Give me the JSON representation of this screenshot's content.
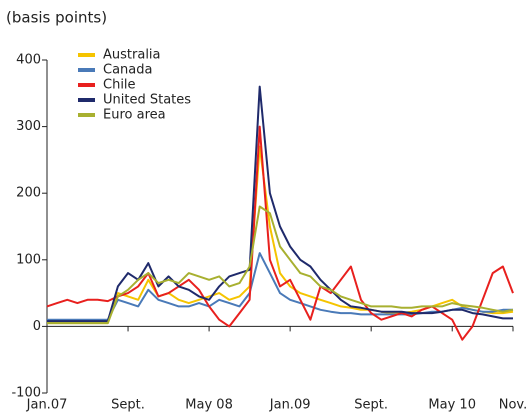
{
  "chart_data": {
    "type": "line",
    "title": "(basis points)",
    "categories": [
      "Jan.07",
      null,
      null,
      null,
      null,
      null,
      null,
      null,
      "Sept.",
      null,
      null,
      null,
      null,
      null,
      null,
      null,
      "May 08",
      null,
      null,
      null,
      null,
      null,
      null,
      null,
      "Jan.09",
      null,
      null,
      null,
      null,
      null,
      null,
      null,
      "Sept.",
      null,
      null,
      null,
      null,
      null,
      null,
      null,
      "May 10",
      null,
      null,
      null,
      null,
      null,
      "Nov."
    ],
    "series": [
      {
        "name": "Australia",
        "color": "#f5c400",
        "values": [
          5,
          5,
          5,
          5,
          5,
          5,
          5,
          50,
          45,
          40,
          70,
          45,
          50,
          40,
          35,
          40,
          45,
          50,
          40,
          45,
          60,
          270,
          150,
          80,
          60,
          50,
          45,
          40,
          35,
          30,
          28,
          25,
          25,
          22,
          20,
          20,
          22,
          25,
          30,
          35,
          40,
          30,
          25,
          22,
          20,
          20,
          22
        ]
      },
      {
        "name": "Canada",
        "color": "#4a7ab8",
        "values": [
          10,
          10,
          10,
          10,
          10,
          10,
          10,
          40,
          35,
          30,
          55,
          40,
          35,
          30,
          30,
          35,
          30,
          40,
          35,
          30,
          50,
          110,
          80,
          50,
          40,
          35,
          30,
          25,
          22,
          20,
          20,
          18,
          18,
          18,
          18,
          18,
          18,
          20,
          22,
          22,
          25,
          28,
          25,
          22,
          22,
          25,
          25
        ]
      },
      {
        "name": "Chile",
        "color": "#e8201e",
        "values": [
          30,
          35,
          40,
          35,
          40,
          40,
          38,
          45,
          50,
          60,
          80,
          45,
          50,
          60,
          70,
          55,
          30,
          10,
          0,
          20,
          40,
          300,
          100,
          60,
          70,
          40,
          10,
          60,
          50,
          70,
          90,
          40,
          20,
          10,
          15,
          20,
          15,
          25,
          30,
          20,
          10,
          -20,
          0,
          40,
          80,
          90,
          50
        ]
      },
      {
        "name": "United States",
        "color": "#1f2a6b",
        "values": [
          8,
          8,
          8,
          8,
          8,
          8,
          8,
          60,
          80,
          70,
          95,
          60,
          75,
          60,
          55,
          45,
          40,
          60,
          75,
          80,
          85,
          360,
          200,
          150,
          120,
          100,
          90,
          70,
          55,
          40,
          30,
          28,
          25,
          22,
          22,
          22,
          20,
          20,
          20,
          22,
          25,
          25,
          20,
          18,
          15,
          12,
          12
        ]
      },
      {
        "name": "Euro area",
        "color": "#a8b030",
        "values": [
          5,
          5,
          5,
          5,
          5,
          5,
          5,
          45,
          55,
          70,
          80,
          65,
          70,
          65,
          80,
          75,
          70,
          75,
          60,
          65,
          90,
          180,
          170,
          120,
          100,
          80,
          75,
          60,
          55,
          45,
          40,
          35,
          30,
          30,
          30,
          28,
          28,
          30,
          30,
          30,
          35,
          32,
          30,
          28,
          25,
          22,
          25
        ]
      }
    ],
    "ylim": [
      -100,
      400
    ],
    "yticks": [
      -100,
      0,
      100,
      200,
      300,
      400
    ]
  }
}
